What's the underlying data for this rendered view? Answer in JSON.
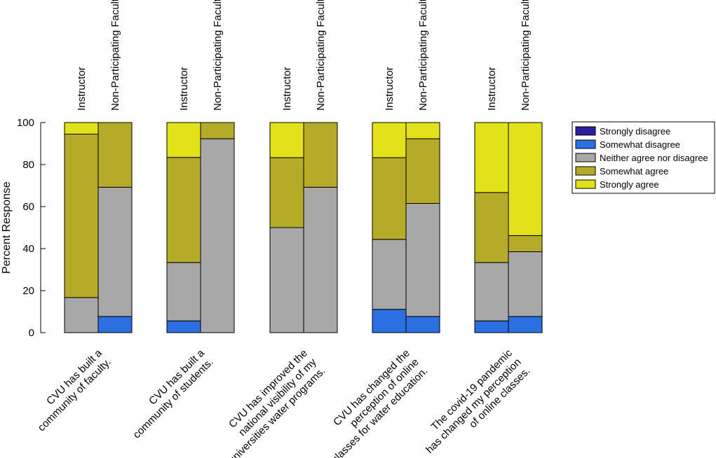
{
  "chart_data": {
    "type": "stacked-bar",
    "ylabel": "Percent Response",
    "ylim": [
      0,
      100
    ],
    "yticks": [
      "0",
      "20",
      "40",
      "60",
      "80",
      "100"
    ],
    "yticks_values": [
      0,
      20,
      40,
      60,
      80,
      100
    ],
    "grid": false,
    "legend_position": "top-right",
    "series": [
      {
        "name": "Strongly disagree",
        "color": "#2b1f9f"
      },
      {
        "name": "Somewhat disagree",
        "color": "#2b6fe0"
      },
      {
        "name": "Neither agree nor disagree",
        "color": "#a8a8a8"
      },
      {
        "name": "Somewhat agree",
        "color": "#b5ab28"
      },
      {
        "name": "Strongly agree",
        "color": "#e2e11a"
      }
    ],
    "groups": [
      {
        "category_lines": [
          "CVU has built a",
          "community of faculty."
        ],
        "bars": [
          {
            "label": "Instructor",
            "values": [
              0,
              0,
              16.7,
              77.8,
              5.5
            ]
          },
          {
            "label": "Non-Participating Faculty",
            "values": [
              0,
              7.7,
              61.5,
              30.8,
              0
            ]
          }
        ]
      },
      {
        "category_lines": [
          "CVU has built a",
          "community of students."
        ],
        "bars": [
          {
            "label": "Instructor",
            "values": [
              0,
              5.6,
              27.8,
              50.0,
              16.6
            ]
          },
          {
            "label": "Non-Participating Faculty",
            "values": [
              0,
              0,
              92.3,
              7.7,
              0
            ]
          }
        ]
      },
      {
        "category_lines": [
          "CVU has improved the",
          "national visibility of my",
          "universities water programs."
        ],
        "bars": [
          {
            "label": "Instructor",
            "values": [
              0,
              0,
              50.0,
              33.3,
              16.7
            ]
          },
          {
            "label": "Non-Participating Faculty",
            "values": [
              0,
              0,
              69.2,
              30.8,
              0
            ]
          }
        ]
      },
      {
        "category_lines": [
          "CVU has changed the",
          "perception of online",
          "classes for water education."
        ],
        "bars": [
          {
            "label": "Instructor",
            "values": [
              0,
              11.1,
              33.3,
              38.9,
              16.7
            ]
          },
          {
            "label": "Non-Participating Faculty",
            "values": [
              0,
              7.7,
              53.8,
              30.8,
              7.7
            ]
          }
        ]
      },
      {
        "category_lines": [
          "The covid-19 pandemic",
          "has changed my perception",
          "of online classes."
        ],
        "bars": [
          {
            "label": "Instructor",
            "values": [
              0,
              5.6,
              27.8,
              33.3,
              33.3
            ]
          },
          {
            "label": "Non-Participating Faculty",
            "values": [
              0,
              7.7,
              30.8,
              7.7,
              53.8
            ]
          }
        ]
      }
    ]
  }
}
